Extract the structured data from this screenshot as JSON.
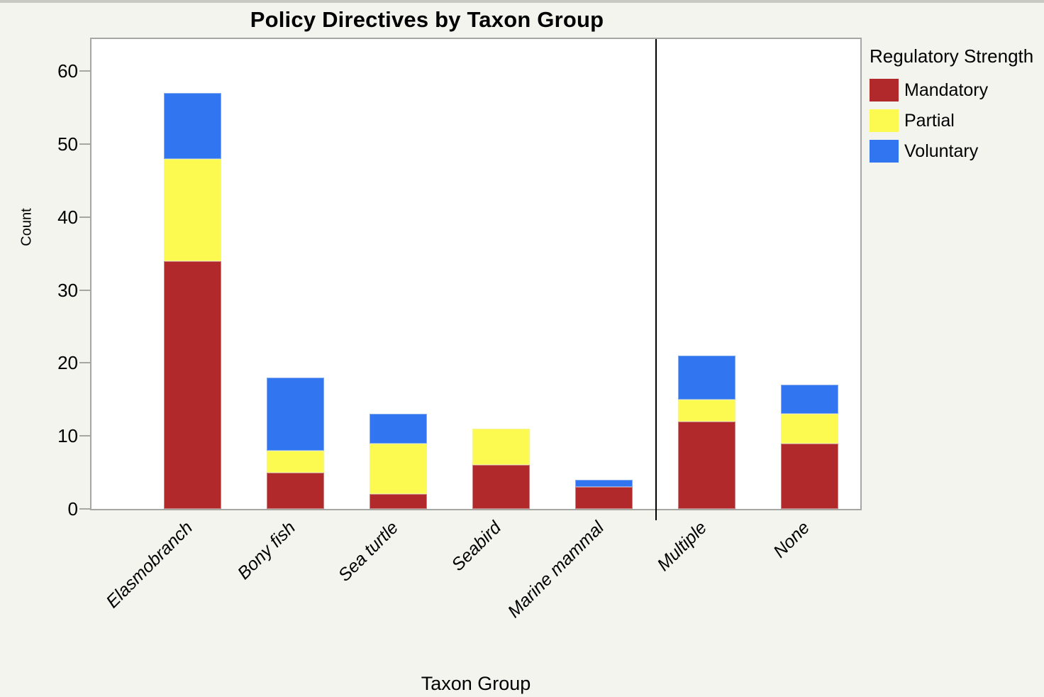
{
  "window": {
    "background_color": "#f4f4ee",
    "top_edge_color": "#c9c9c4",
    "plot_background": "#ffffff",
    "plot_border_color": "#a6a6a3",
    "separator_color": "#000000"
  },
  "chart_data": {
    "type": "bar",
    "stacked": true,
    "title": "Policy Directives by Taxon Group",
    "xlabel": "Taxon Group",
    "ylabel": "Count",
    "legend_title": "Regulatory Strength",
    "legend_position": "right",
    "grid": false,
    "categories": [
      "Elasmobranch",
      "Bony fish",
      "Sea turtle",
      "Seabird",
      "Marine mammal",
      "Multiple",
      "None"
    ],
    "series": [
      {
        "name": "Mandatory",
        "color": "#b1292a",
        "values": [
          34,
          5,
          2,
          6,
          3,
          12,
          9
        ]
      },
      {
        "name": "Partial",
        "color": "#fcf950",
        "values": [
          14,
          3,
          7,
          5,
          0,
          3,
          4
        ]
      },
      {
        "name": "Voluntary",
        "color": "#3175f1",
        "values": [
          9,
          10,
          4,
          0,
          1,
          6,
          4
        ]
      }
    ],
    "totals": [
      57,
      18,
      13,
      11,
      4,
      21,
      17
    ],
    "y_ticks": [
      0,
      10,
      20,
      30,
      40,
      50,
      60
    ],
    "ylim": [
      0,
      64.4
    ],
    "separator_after_category": "Marine mammal"
  }
}
